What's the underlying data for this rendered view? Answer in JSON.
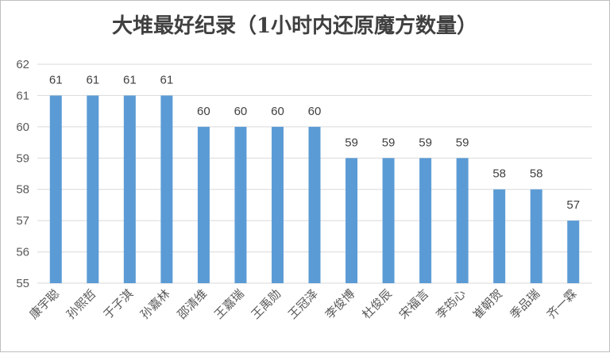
{
  "chart_data": {
    "type": "bar",
    "title": "大堆最好纪录（1小时内还原魔方数量）",
    "categories": [
      "康宇聪",
      "孙熙哲",
      "于子淇",
      "孙嘉林",
      "邵清维",
      "王嘉瑞",
      "王禹勋",
      "王冠泽",
      "李俊博",
      "杜俊辰",
      "宋福言",
      "李筠心",
      "崔朝贺",
      "季品瑞",
      "齐一霖"
    ],
    "values": [
      61,
      61,
      61,
      61,
      60,
      60,
      60,
      60,
      59,
      59,
      59,
      59,
      58,
      58,
      57
    ],
    "ylim": [
      55,
      62
    ],
    "yticks": [
      55,
      56,
      57,
      58,
      59,
      60,
      61,
      62
    ],
    "grid": true,
    "legend": "none",
    "bar_color": "#5b9bd5",
    "grid_color": "#d9d9d9"
  }
}
